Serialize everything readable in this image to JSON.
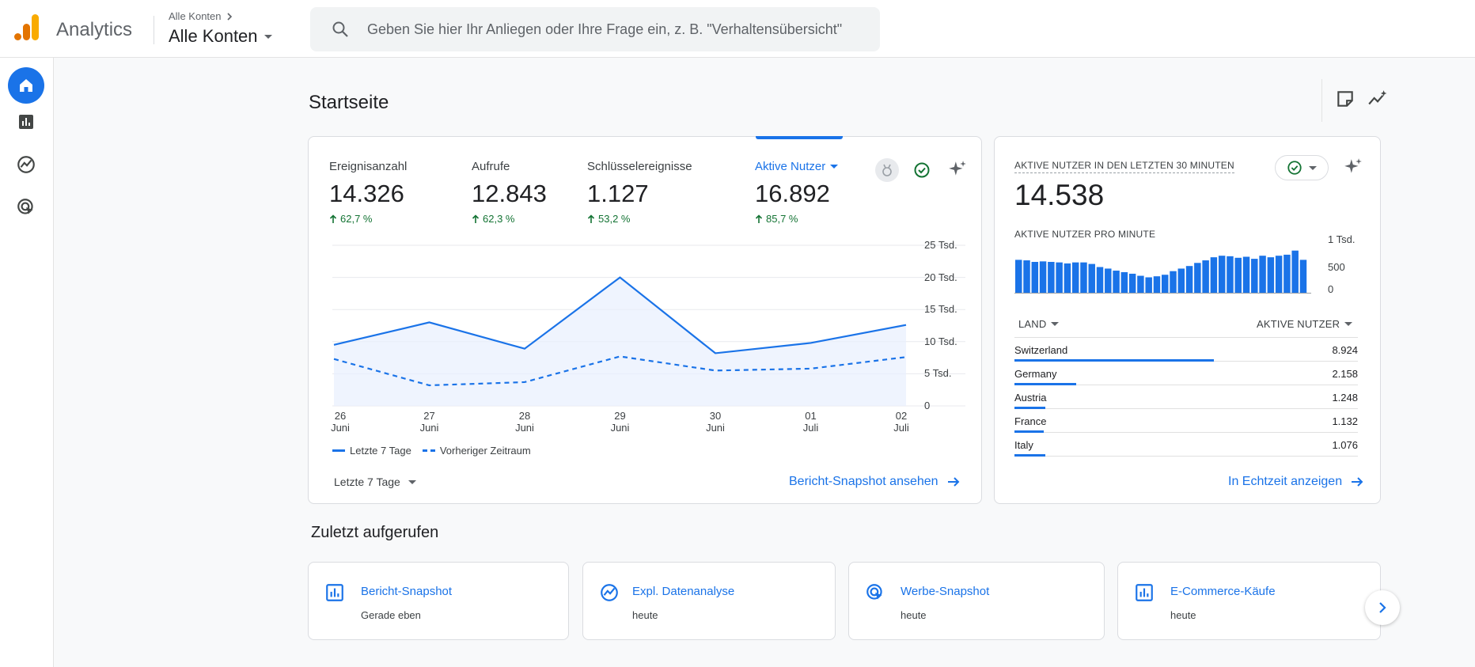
{
  "header": {
    "app_name": "Analytics",
    "breadcrumb": "Alle Konten",
    "account": "Alle Konten",
    "search_placeholder": "Geben Sie hier Ihr Anliegen oder Ihre Frage ein, z. B. \"Verhaltensübersicht\""
  },
  "nav": {
    "items": [
      {
        "name": "home",
        "icon": "home-icon",
        "active": true
      },
      {
        "name": "reports",
        "icon": "bar-chart-icon",
        "active": false
      },
      {
        "name": "explore",
        "icon": "explore-icon",
        "active": false
      },
      {
        "name": "advertising",
        "icon": "advertising-icon",
        "active": false
      }
    ]
  },
  "page": {
    "title": "Startseite"
  },
  "metrics": [
    {
      "label": "Ereignisanzahl",
      "value": "14.326",
      "delta": "62,7 %"
    },
    {
      "label": "Aufrufe",
      "value": "12.843",
      "delta": "62,3 %"
    },
    {
      "label": "Schlüsselereignisse",
      "value": "1.127",
      "delta": "53,2 %"
    },
    {
      "label": "Aktive Nutzer",
      "value": "16.892",
      "delta": "85,7 %"
    }
  ],
  "chart_data": {
    "type": "line",
    "x": [
      "26 Juni",
      "27 Juni",
      "28 Juni",
      "29 Juni",
      "30 Juni",
      "01 Juli",
      "02 Juli"
    ],
    "x_ticks": [
      {
        "day": "26",
        "month": "Juni"
      },
      {
        "day": "27",
        "month": "Juni"
      },
      {
        "day": "28",
        "month": "Juni"
      },
      {
        "day": "29",
        "month": "Juni"
      },
      {
        "day": "30",
        "month": "Juni"
      },
      {
        "day": "01",
        "month": "Juli"
      },
      {
        "day": "02",
        "month": "Juli"
      }
    ],
    "y_ticks": [
      "25 Tsd.",
      "20 Tsd.",
      "15 Tsd.",
      "10 Tsd.",
      "5 Tsd.",
      "0"
    ],
    "ylim": [
      0,
      25000
    ],
    "series": [
      {
        "name": "Letzte 7 Tage",
        "style": "solid",
        "values": [
          9500,
          13000,
          8900,
          20000,
          8200,
          9800,
          12600
        ]
      },
      {
        "name": "Vorheriger Zeitraum",
        "style": "dashed",
        "values": [
          7300,
          3200,
          3700,
          7700,
          5500,
          5800,
          7600
        ]
      }
    ],
    "color": "#1a73e8"
  },
  "main_card": {
    "range": "Letzte 7 Tage",
    "link": "Bericht-Snapshot ansehen"
  },
  "realtime": {
    "title": "AKTIVE NUTZER IN DEN LETZTEN 30 MINUTEN",
    "value": "14.538",
    "subtitle": "AKTIVE NUTZER PRO MINUTE",
    "y_ticks": [
      "1 Tsd.",
      "500",
      "0"
    ],
    "per_minute": [
      640,
      630,
      600,
      610,
      600,
      590,
      570,
      590,
      590,
      560,
      500,
      470,
      430,
      400,
      370,
      330,
      300,
      320,
      350,
      420,
      470,
      520,
      580,
      630,
      690,
      720,
      710,
      680,
      700,
      660,
      720,
      690,
      720,
      740,
      820,
      640
    ],
    "col_country": "LAND",
    "col_users": "AKTIVE NUTZER",
    "rows": [
      {
        "country": "Switzerland",
        "value": "8.924",
        "share": 0.58
      },
      {
        "country": "Germany",
        "value": "2.158",
        "share": 0.18
      },
      {
        "country": "Austria",
        "value": "1.248",
        "share": 0.09
      },
      {
        "country": "France",
        "value": "1.132",
        "share": 0.085
      },
      {
        "country": "Italy",
        "value": "1.076",
        "share": 0.09
      }
    ],
    "link": "In Echtzeit anzeigen"
  },
  "recent": {
    "title": "Zuletzt aufgerufen",
    "items": [
      {
        "icon": "report-icon",
        "title": "Bericht-Snapshot",
        "subtitle": "Gerade eben"
      },
      {
        "icon": "explore-icon",
        "title": "Expl. Datenanalyse",
        "subtitle": "heute"
      },
      {
        "icon": "advertising-icon",
        "title": "Werbe-Snapshot",
        "subtitle": "heute"
      },
      {
        "icon": "report-icon",
        "title": "E-Commerce-Käufe",
        "subtitle": "heute"
      }
    ]
  }
}
